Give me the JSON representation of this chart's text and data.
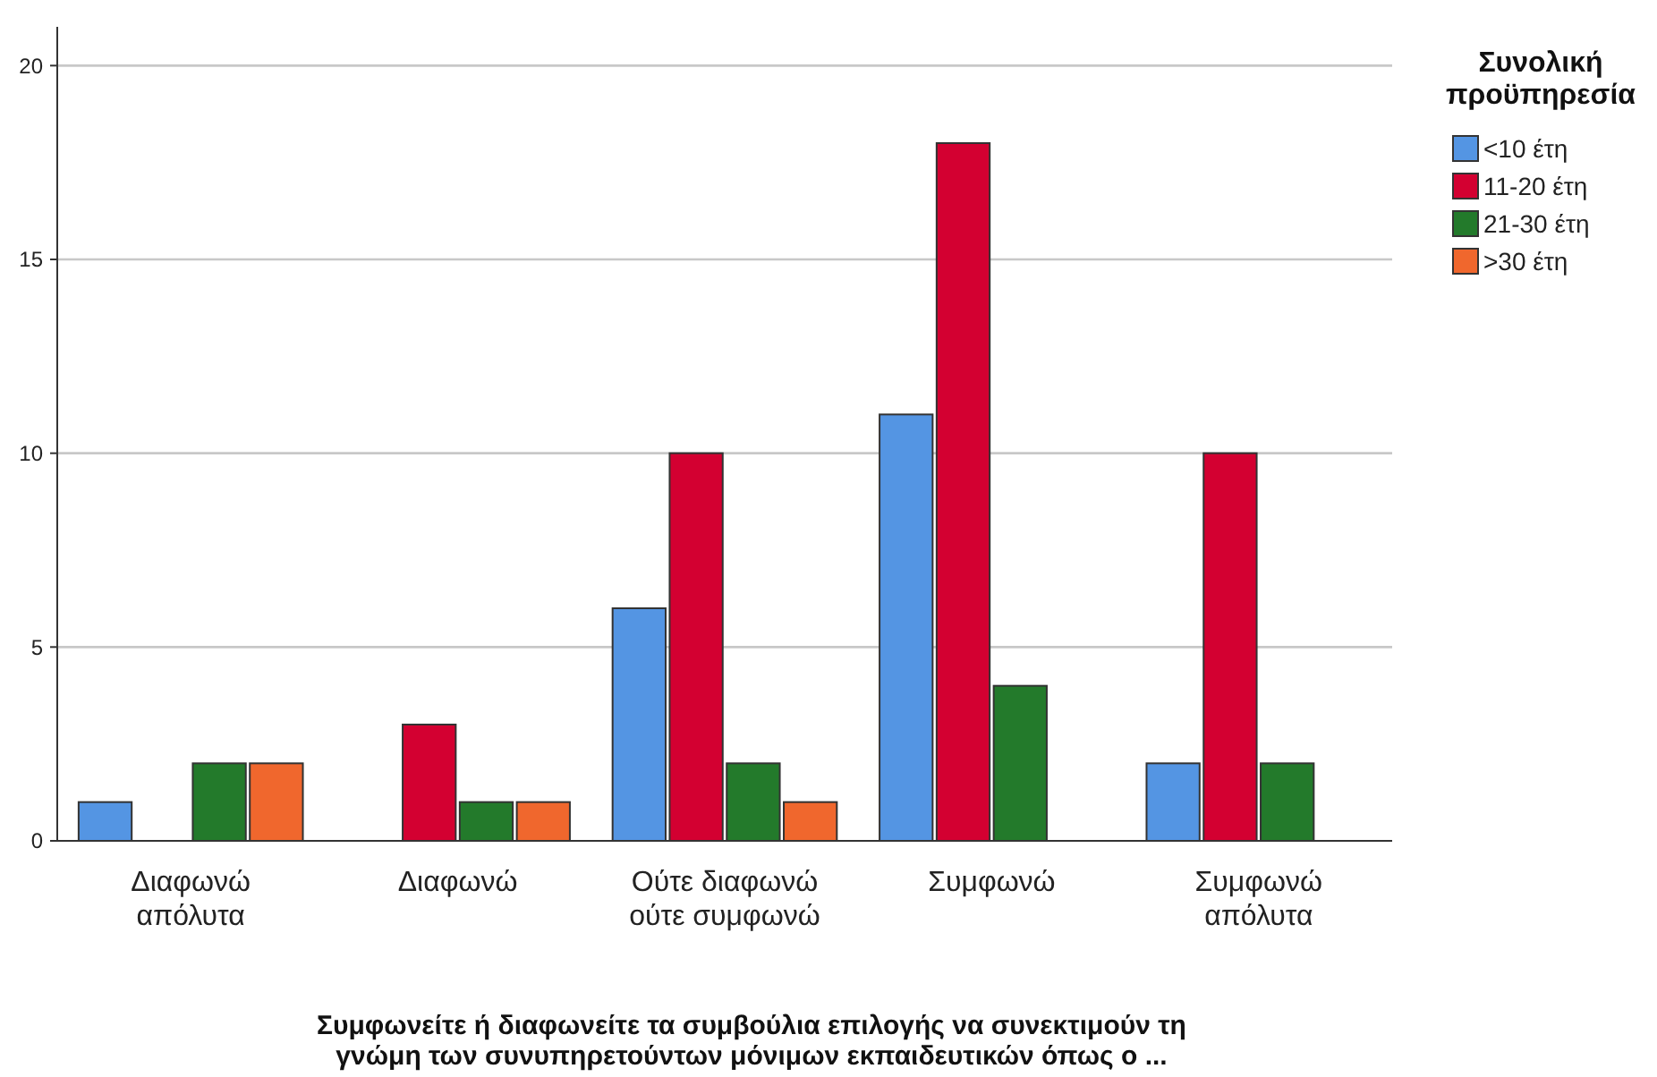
{
  "chart_data": {
    "type": "bar",
    "xlabel": "Συμφωνείτε ή διαφωνείτε τα συμβούλια επιλογής να συνεκτιμούν τη γνώμη των συνυπηρετούντων μόνιμων εκπαιδευτικών όπως ο ...",
    "legend_title": "Συνολική προϋπηρεσία",
    "categories": [
      "Διαφωνώ απόλυτα",
      "Διαφωνώ",
      "Ούτε διαφωνώ ούτε συμφωνώ",
      "Συμφωνώ",
      "Συμφωνώ απόλυτα"
    ],
    "series": [
      {
        "name": "<10 έτη",
        "color": "#5495e3",
        "values": [
          1,
          null,
          6,
          11,
          2
        ]
      },
      {
        "name": "11-20 έτη",
        "color": "#d30031",
        "values": [
          null,
          3,
          10,
          18,
          10
        ]
      },
      {
        "name": "21-30 έτη",
        "color": "#237a2b",
        "values": [
          2,
          1,
          2,
          4,
          2
        ]
      },
      {
        "name": ">30 έτη",
        "color": "#f0672d",
        "values": [
          2,
          1,
          1,
          null,
          null
        ]
      }
    ],
    "ylim": [
      0,
      21
    ],
    "yticks": [
      0,
      5,
      10,
      15,
      20
    ],
    "grid": "y",
    "legend": "top right"
  }
}
